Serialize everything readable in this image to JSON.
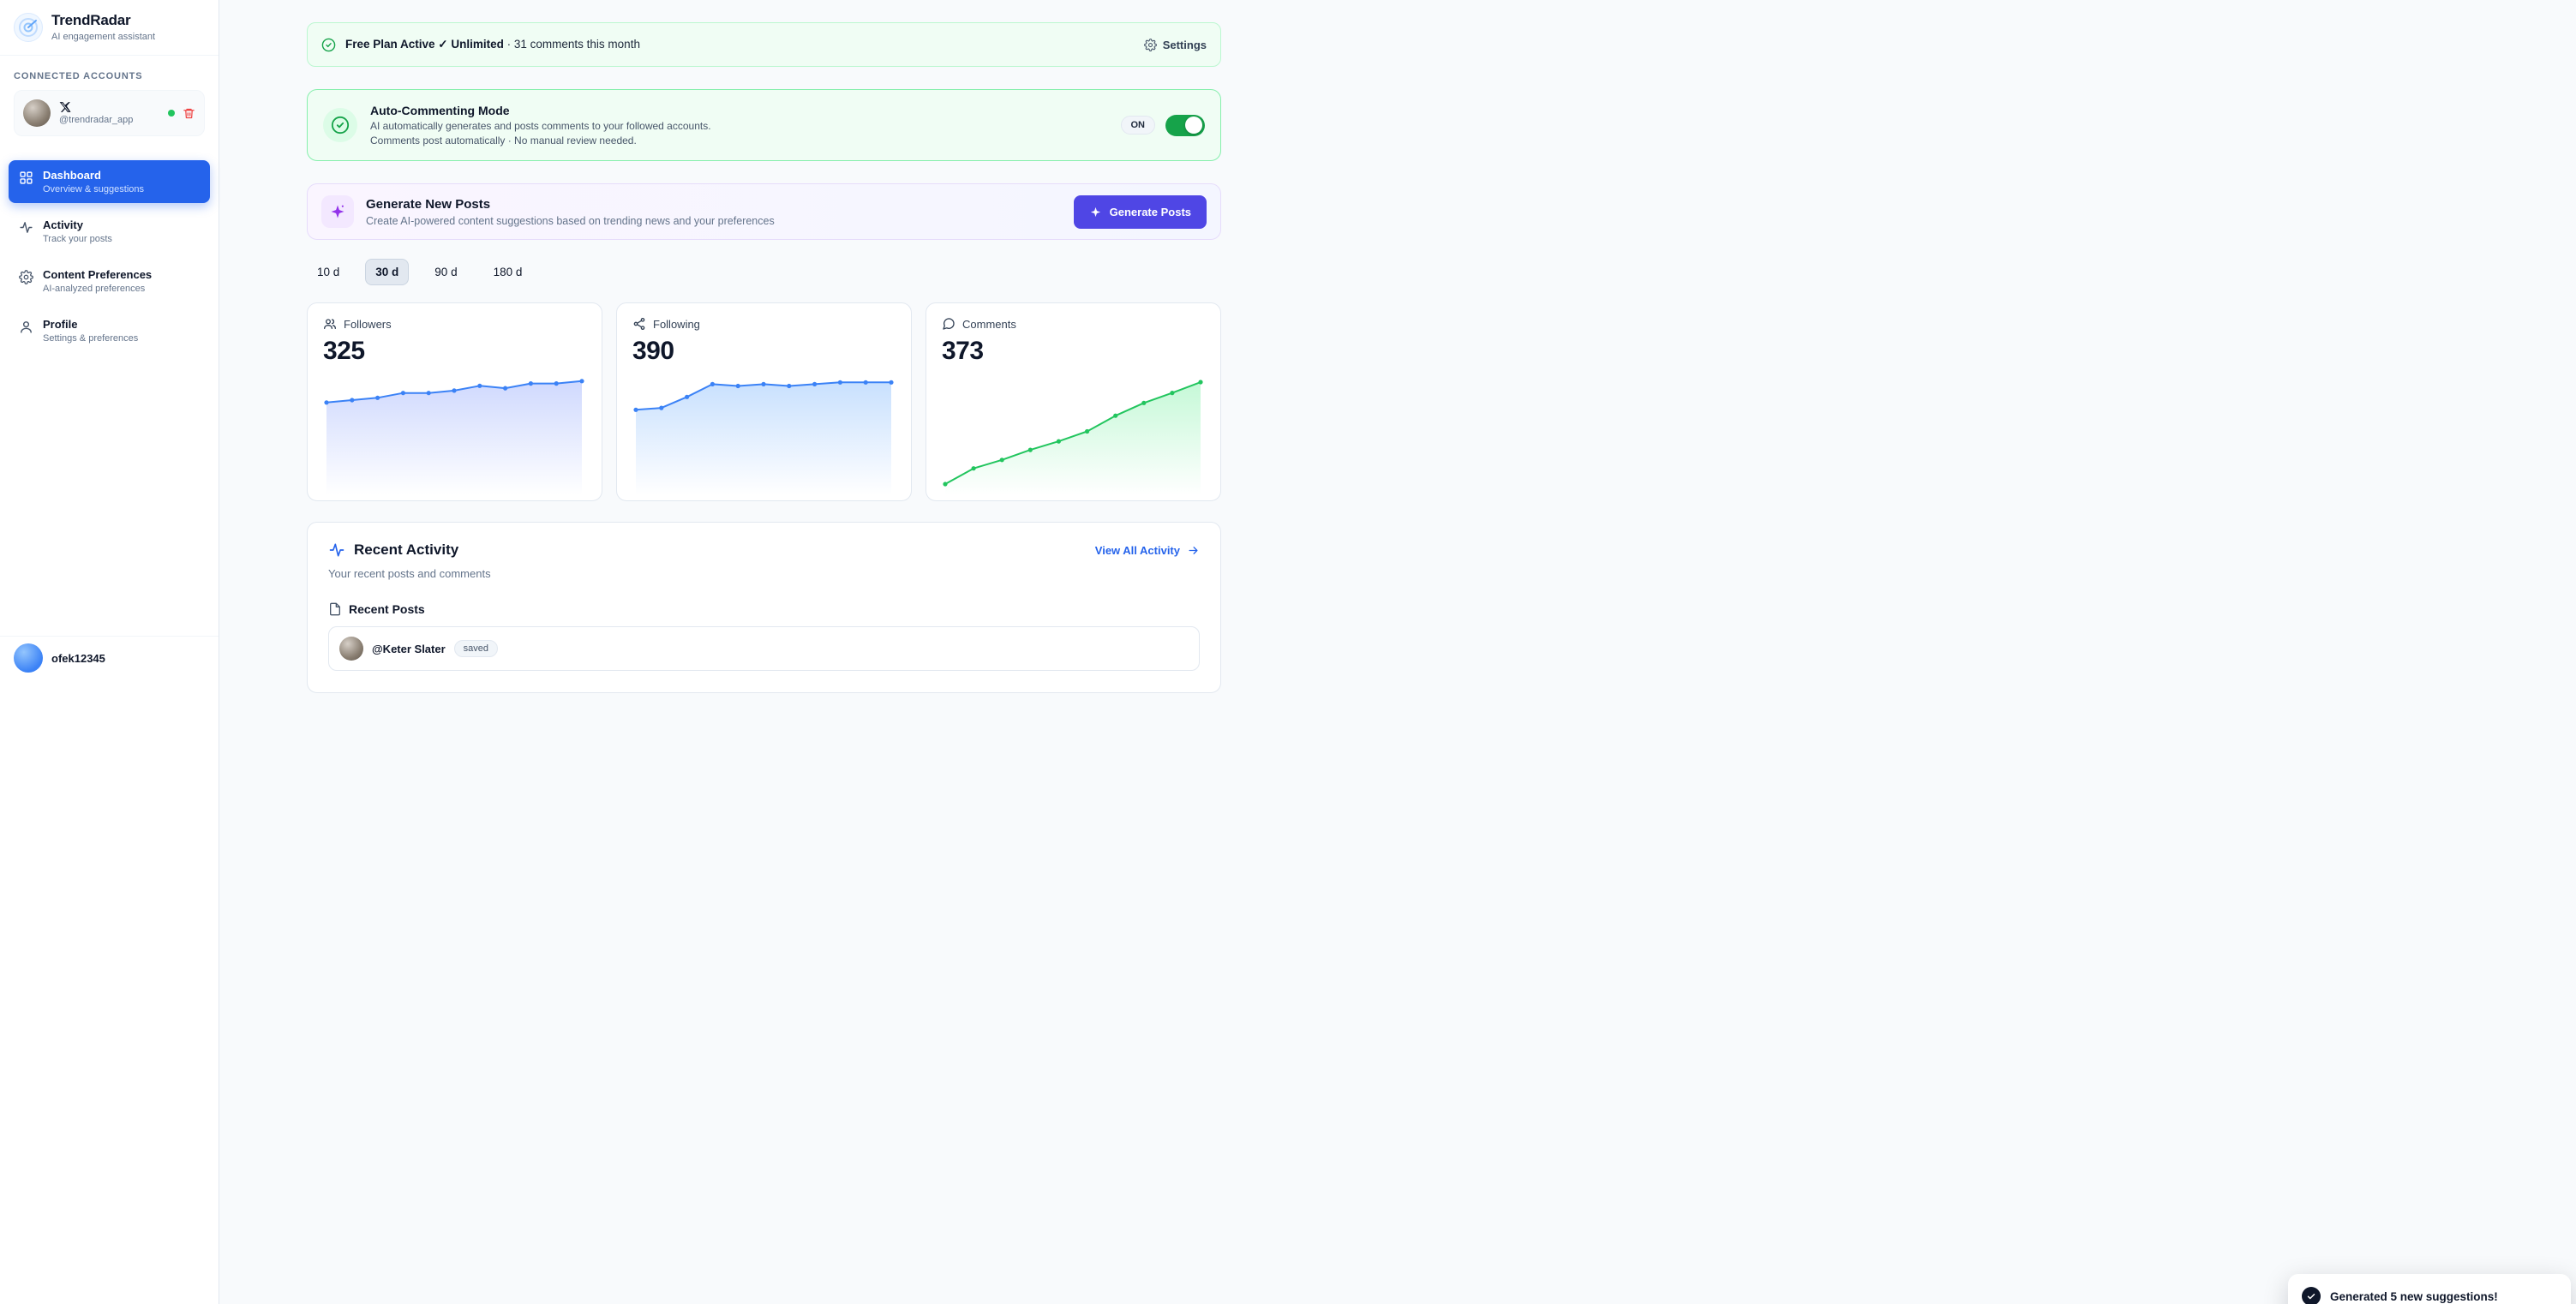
{
  "sidebar": {
    "app_name": "TrendRadar",
    "app_subtitle": "AI engagement assistant",
    "accounts_header": "CONNECTED ACCOUNTS",
    "account": {
      "platform": "X",
      "handle": "@trendradar_app",
      "status": "connected"
    },
    "nav": [
      {
        "label": "Dashboard",
        "sub": "Overview & suggestions",
        "icon": "grid-icon",
        "active": true
      },
      {
        "label": "Activity",
        "sub": "Track your posts",
        "icon": "pulse-icon",
        "active": false
      },
      {
        "label": "Content Preferences",
        "sub": "AI-analyzed preferences",
        "icon": "gear-icon",
        "active": false
      },
      {
        "label": "Profile",
        "sub": "Settings & preferences",
        "icon": "user-icon",
        "active": false
      }
    ],
    "user": {
      "name": "ofek12345"
    }
  },
  "plan_banner": {
    "title": "Free Plan Active ✓ Unlimited",
    "detail": "· 31 comments this month",
    "settings_label": "Settings"
  },
  "auto_comment": {
    "title": "Auto-Commenting Mode",
    "line1": "AI automatically generates and posts comments to your followed accounts.",
    "line2": "Comments post automatically · No manual review needed.",
    "state_label": "ON",
    "toggle_on": true
  },
  "generate": {
    "title": "Generate New Posts",
    "subtitle": "Create AI-powered content suggestions based on trending news and your preferences",
    "button_label": "Generate Posts"
  },
  "range_tabs": [
    {
      "label": "10 d",
      "active": false
    },
    {
      "label": "30 d",
      "active": true
    },
    {
      "label": "90 d",
      "active": false
    },
    {
      "label": "180 d",
      "active": false
    }
  ],
  "stats": [
    {
      "label": "Followers",
      "value": "325"
    },
    {
      "label": "Following",
      "value": "390"
    },
    {
      "label": "Comments",
      "value": "373"
    }
  ],
  "chart_data": [
    {
      "type": "line",
      "name": "Followers",
      "values": [
        316,
        317,
        318,
        320,
        320,
        321,
        323,
        322,
        324,
        324,
        325
      ],
      "ylim": [
        280,
        326
      ],
      "color": "#3b82f6",
      "fill": "#c7d2fe",
      "legend": "none",
      "grid": false
    },
    {
      "type": "line",
      "name": "Following",
      "values": [
        375,
        376,
        382,
        389,
        388,
        389,
        388,
        389,
        390,
        390,
        390
      ],
      "ylim": [
        332,
        392
      ],
      "color": "#3b82f6",
      "fill": "#bfdbfe",
      "legend": "none",
      "grid": false
    },
    {
      "type": "line",
      "name": "Comments",
      "values": [
        15,
        70,
        100,
        135,
        165,
        200,
        255,
        300,
        335,
        373
      ],
      "ylim": [
        0,
        385
      ],
      "color": "#22c55e",
      "fill": "#bbf7d0",
      "legend": "none",
      "grid": false
    }
  ],
  "recent": {
    "title": "Recent Activity",
    "subtitle": "Your recent posts and comments",
    "view_all_label": "View All Activity",
    "posts_header": "Recent Posts",
    "post": {
      "author": "@Keter Slater",
      "badge": "saved"
    }
  },
  "toast": {
    "message": "Generated 5 new suggestions!"
  },
  "colors": {
    "accent_blue": "#2563eb",
    "success_green": "#16a34a",
    "button_indigo": "#4f46e5",
    "banner_green_bg": "#f0fdf4"
  }
}
